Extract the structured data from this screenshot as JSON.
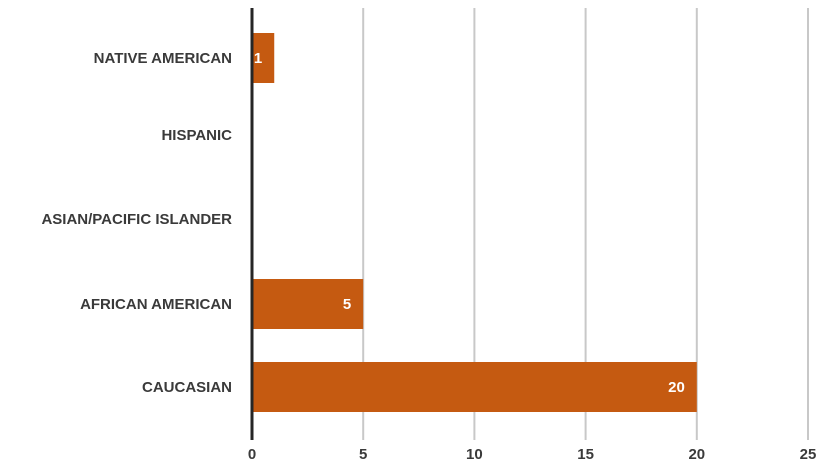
{
  "chart_data": {
    "type": "bar",
    "orientation": "horizontal",
    "categories": [
      "NATIVE AMERICAN",
      "HISPANIC",
      "ASIAN/PACIFIC ISLANDER",
      "AFRICAN AMERICAN",
      "CAUCASIAN"
    ],
    "values": [
      1,
      0,
      0,
      5,
      20
    ],
    "data_labels": [
      "1",
      "",
      "",
      "5",
      "20"
    ],
    "xlim": [
      0,
      25
    ],
    "xticks": [
      "0",
      "5",
      "10",
      "15",
      "20",
      "25"
    ],
    "grid": "vertical",
    "title": "",
    "xlabel": "",
    "ylabel": "",
    "legend": "none",
    "colors": {
      "bar": "#c55a11",
      "grid": "#c8c8c8",
      "axis": "#262626",
      "label_text": "#3a3a3a",
      "data_label_text": "#ffffff"
    }
  }
}
